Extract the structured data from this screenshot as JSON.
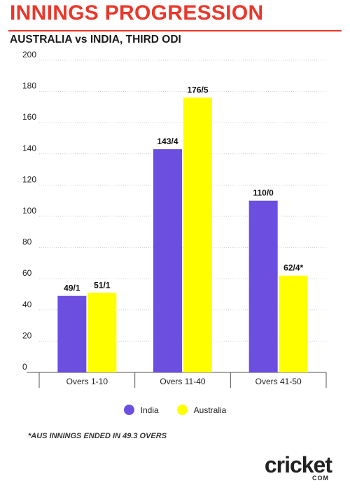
{
  "header": {
    "title": "INNINGS PROGRESSION",
    "subtitle": "AUSTRALIA vs INDIA, THIRD ODI"
  },
  "colors": {
    "accent": "#e8382b",
    "india": "#6c4fe0",
    "australia": "#ffff00"
  },
  "chart_data": {
    "type": "bar",
    "categories": [
      "Overs 1-10",
      "Overs 11-40",
      "Overs 41-50"
    ],
    "series": [
      {
        "name": "India",
        "values": [
          49,
          143,
          110
        ],
        "labels": [
          "49/1",
          "143/4",
          "110/0"
        ],
        "color": "#6c4fe0"
      },
      {
        "name": "Australia",
        "values": [
          51,
          176,
          62
        ],
        "labels": [
          "51/1",
          "176/5",
          "62/4*"
        ],
        "color": "#ffff00"
      }
    ],
    "ylim": [
      0,
      200
    ],
    "yticks": [
      0,
      20,
      40,
      60,
      80,
      100,
      120,
      140,
      160,
      180,
      200
    ],
    "grid": true,
    "legend": "bottom-center"
  },
  "footnote": "*AUS INNINGS ENDED IN 49.3 OVERS",
  "logo": {
    "word_start": "cricket",
    "dot": "",
    "com": "COM"
  }
}
